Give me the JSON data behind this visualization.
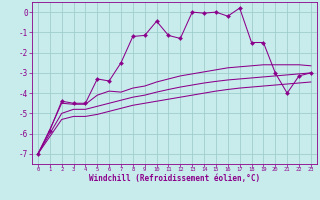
{
  "background_color": "#c8ecec",
  "grid_color": "#a0cece",
  "line_color": "#8b008b",
  "xlabel": "Windchill (Refroidissement éolien,°C)",
  "ylim": [
    -7.5,
    0.5
  ],
  "xlim": [
    -0.5,
    23.5
  ],
  "yticks": [
    0,
    -1,
    -2,
    -3,
    -4,
    -5,
    -6,
    -7
  ],
  "xticks": [
    0,
    1,
    2,
    3,
    4,
    5,
    6,
    7,
    8,
    9,
    10,
    11,
    12,
    13,
    14,
    15,
    16,
    17,
    18,
    19,
    20,
    21,
    22,
    23
  ],
  "line1_x": [
    0,
    1,
    2,
    3,
    4,
    5,
    6,
    7,
    8,
    9,
    10,
    11,
    12,
    13,
    14,
    15,
    16,
    17,
    18,
    19,
    20,
    21,
    22,
    23
  ],
  "line1_y": [
    -7.0,
    -5.85,
    -4.4,
    -4.5,
    -4.5,
    -3.3,
    -3.4,
    -2.5,
    -1.2,
    -1.15,
    -0.45,
    -1.15,
    -1.3,
    0.0,
    -0.05,
    0.0,
    -0.2,
    0.2,
    -1.5,
    -1.5,
    -3.0,
    -4.0,
    -3.15,
    -3.0
  ],
  "line2_x": [
    0,
    1,
    2,
    3,
    4,
    5,
    6,
    7,
    8,
    9,
    10,
    11,
    12,
    13,
    14,
    15,
    16,
    17,
    18,
    19,
    20,
    21,
    22,
    23
  ],
  "line2_y": [
    -7.0,
    -5.8,
    -4.5,
    -4.55,
    -4.55,
    -4.1,
    -3.9,
    -3.95,
    -3.75,
    -3.65,
    -3.45,
    -3.3,
    -3.15,
    -3.05,
    -2.95,
    -2.85,
    -2.75,
    -2.7,
    -2.65,
    -2.6,
    -2.6,
    -2.6,
    -2.6,
    -2.65
  ],
  "line3_x": [
    0,
    1,
    2,
    3,
    4,
    5,
    6,
    7,
    8,
    9,
    10,
    11,
    12,
    13,
    14,
    15,
    16,
    17,
    18,
    19,
    20,
    21,
    22,
    23
  ],
  "line3_y": [
    -7.0,
    -6.0,
    -5.0,
    -4.8,
    -4.8,
    -4.65,
    -4.5,
    -4.35,
    -4.2,
    -4.1,
    -3.95,
    -3.82,
    -3.7,
    -3.6,
    -3.5,
    -3.42,
    -3.35,
    -3.3,
    -3.25,
    -3.2,
    -3.15,
    -3.1,
    -3.05,
    -3.0
  ],
  "line4_x": [
    0,
    1,
    2,
    3,
    4,
    5,
    6,
    7,
    8,
    9,
    10,
    11,
    12,
    13,
    14,
    15,
    16,
    17,
    18,
    19,
    20,
    21,
    22,
    23
  ],
  "line4_y": [
    -7.0,
    -6.15,
    -5.3,
    -5.15,
    -5.15,
    -5.05,
    -4.9,
    -4.75,
    -4.6,
    -4.5,
    -4.4,
    -4.3,
    -4.2,
    -4.1,
    -4.0,
    -3.9,
    -3.82,
    -3.75,
    -3.7,
    -3.65,
    -3.6,
    -3.55,
    -3.5,
    -3.45
  ]
}
